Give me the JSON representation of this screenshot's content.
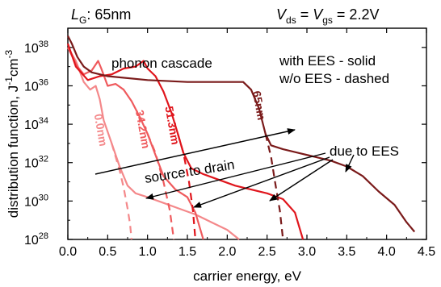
{
  "chart_data": {
    "type": "line",
    "xlabel": "carrier energy, eV",
    "ylabel": "distribution function, J",
    "ylabel_sup1": "-1",
    "ylabel_mid": "cm",
    "ylabel_sup2": "-3",
    "xlim": [
      0.0,
      4.5
    ],
    "ylim_exp": [
      28,
      39
    ],
    "log_y": true,
    "grid": false,
    "x_ticks": [
      "0.0",
      "0.5",
      "1.0",
      "1.5",
      "2.0",
      "2.5",
      "3.0",
      "3.5",
      "4.0",
      "4.5"
    ],
    "y_ticks": [
      {
        "base": "10",
        "exp": "28"
      },
      {
        "base": "10",
        "exp": "30"
      },
      {
        "base": "10",
        "exp": "32"
      },
      {
        "base": "10",
        "exp": "34"
      },
      {
        "base": "10",
        "exp": "36"
      },
      {
        "base": "10",
        "exp": "38"
      }
    ],
    "header_left": {
      "main": "L",
      "sub": "G",
      "rest": ": 65nm"
    },
    "header_right": {
      "v1": "V",
      "s1": "ds",
      "mid": " = ",
      "v2": "V",
      "s2": "gs",
      "rest": " = 2.2V"
    },
    "annotations": {
      "phonon": "phonon cascade",
      "legend1": "with EES - solid",
      "legend2": "w/o EES - dashed",
      "source_drain": "source to drain",
      "due": "due to EES"
    },
    "series": [
      {
        "name": "0.0nm",
        "color": "#f4888a",
        "solid": [
          [
            0.0,
            38.0
          ],
          [
            0.1,
            37.3
          ],
          [
            0.2,
            36.2
          ],
          [
            0.28,
            35.8
          ],
          [
            0.35,
            36.0
          ],
          [
            0.4,
            35.3
          ],
          [
            0.45,
            34.2
          ],
          [
            0.55,
            33.0
          ],
          [
            0.65,
            31.8
          ],
          [
            0.75,
            30.8
          ],
          [
            0.85,
            30.4
          ],
          [
            1.0,
            30.2
          ],
          [
            1.2,
            29.9
          ],
          [
            1.4,
            29.6
          ],
          [
            1.6,
            29.3
          ],
          [
            1.8,
            28.9
          ],
          [
            2.0,
            28.5
          ],
          [
            2.15,
            28.0
          ]
        ],
        "dashed": [
          [
            0.55,
            33.0
          ],
          [
            0.6,
            32.3
          ],
          [
            0.65,
            31.6
          ],
          [
            0.7,
            30.7
          ],
          [
            0.75,
            29.6
          ],
          [
            0.78,
            28.8
          ],
          [
            0.8,
            28.0
          ]
        ]
      },
      {
        "name": "34.2nm",
        "color": "#ef5a5d",
        "solid": [
          [
            0.0,
            38.0
          ],
          [
            0.12,
            37.0
          ],
          [
            0.2,
            36.6
          ],
          [
            0.3,
            36.8
          ],
          [
            0.38,
            37.3
          ],
          [
            0.42,
            36.9
          ],
          [
            0.5,
            36.0
          ],
          [
            0.6,
            36.1
          ],
          [
            0.7,
            35.8
          ],
          [
            0.8,
            35.2
          ],
          [
            0.9,
            34.4
          ],
          [
            1.0,
            33.5
          ],
          [
            1.1,
            32.4
          ],
          [
            1.2,
            31.3
          ],
          [
            1.35,
            30.6
          ],
          [
            1.5,
            30.2
          ],
          [
            1.6,
            29.4
          ],
          [
            1.7,
            28.0
          ]
        ],
        "dashed": [
          [
            1.0,
            33.5
          ],
          [
            1.1,
            32.5
          ],
          [
            1.2,
            31.0
          ],
          [
            1.28,
            29.5
          ],
          [
            1.33,
            28.0
          ]
        ]
      },
      {
        "name": "51.3nm",
        "color": "#e0151c",
        "solid": [
          [
            0.0,
            38.2
          ],
          [
            0.1,
            37.0
          ],
          [
            0.25,
            36.3
          ],
          [
            0.4,
            36.5
          ],
          [
            0.55,
            36.6
          ],
          [
            0.7,
            36.9
          ],
          [
            0.85,
            37.0
          ],
          [
            0.95,
            37.3
          ],
          [
            1.0,
            36.9
          ],
          [
            1.1,
            36.5
          ],
          [
            1.2,
            35.7
          ],
          [
            1.3,
            34.6
          ],
          [
            1.38,
            33.5
          ],
          [
            1.45,
            32.5
          ],
          [
            1.55,
            31.7
          ],
          [
            1.7,
            31.4
          ],
          [
            1.9,
            31.1
          ],
          [
            2.1,
            30.8
          ],
          [
            2.3,
            30.6
          ],
          [
            2.5,
            30.4
          ],
          [
            2.7,
            30.1
          ],
          [
            2.85,
            29.4
          ],
          [
            2.95,
            28.0
          ]
        ],
        "dashed": [
          [
            1.38,
            33.5
          ],
          [
            1.45,
            32.5
          ],
          [
            1.52,
            31.0
          ],
          [
            1.57,
            29.5
          ],
          [
            1.6,
            28.0
          ]
        ]
      },
      {
        "name": "65nm",
        "color": "#7a1a1a",
        "solid": [
          [
            0.0,
            38.6
          ],
          [
            0.05,
            38.2
          ],
          [
            0.12,
            37.5
          ],
          [
            0.2,
            37.0
          ],
          [
            0.3,
            36.7
          ],
          [
            0.5,
            36.5
          ],
          [
            1.0,
            36.3
          ],
          [
            1.5,
            36.2
          ],
          [
            2.0,
            36.2
          ],
          [
            2.2,
            36.2
          ],
          [
            2.3,
            35.8
          ],
          [
            2.4,
            34.8
          ],
          [
            2.48,
            33.5
          ],
          [
            2.55,
            32.9
          ],
          [
            2.7,
            32.7
          ],
          [
            2.9,
            32.5
          ],
          [
            3.1,
            32.3
          ],
          [
            3.3,
            32.1
          ],
          [
            3.5,
            31.8
          ],
          [
            3.7,
            31.3
          ],
          [
            3.9,
            30.5
          ],
          [
            4.1,
            29.8
          ],
          [
            4.25,
            28.9
          ],
          [
            4.35,
            28.4
          ]
        ],
        "dashed": [
          [
            2.48,
            33.5
          ],
          [
            2.55,
            32.3
          ],
          [
            2.6,
            31.0
          ],
          [
            2.66,
            29.5
          ],
          [
            2.7,
            28.0
          ]
        ]
      }
    ],
    "curve_labels": [
      {
        "series": "0.0nm",
        "x": 0.33,
        "y": 34.5,
        "rotate": 80
      },
      {
        "series": "34.2nm",
        "x": 0.85,
        "y": 34.7,
        "rotate": 80
      },
      {
        "series": "51.3nm",
        "x": 1.22,
        "y": 34.9,
        "rotate": 80
      },
      {
        "series": "65nm",
        "x": 2.32,
        "y": 35.7,
        "rotate": 80
      }
    ]
  }
}
